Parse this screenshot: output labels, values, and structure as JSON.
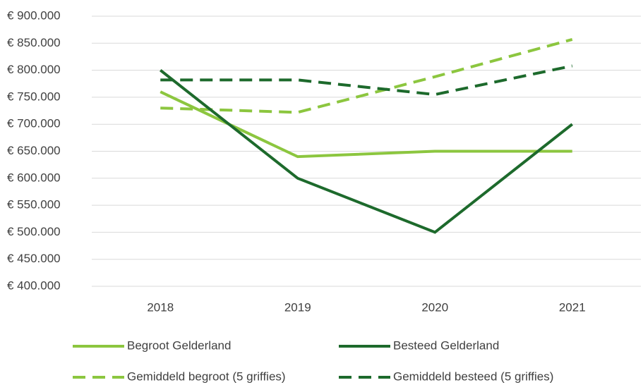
{
  "chart_data": {
    "type": "line",
    "categories": [
      "2018",
      "2019",
      "2020",
      "2021"
    ],
    "series": [
      {
        "name": "Begroot Gelderland",
        "color": "#8cc63f",
        "dashed": false,
        "values": [
          760000,
          640000,
          650000,
          650000
        ]
      },
      {
        "name": "Besteed Gelderland",
        "color": "#1d6a2c",
        "dashed": false,
        "values": [
          800000,
          600000,
          500000,
          700000
        ]
      },
      {
        "name": "Gemiddeld begroot (5 griffies)",
        "color": "#8cc63f",
        "dashed": true,
        "values": [
          730000,
          722000,
          788000,
          857000
        ]
      },
      {
        "name": "Gemiddeld besteed (5 griffies)",
        "color": "#1d6a2c",
        "dashed": true,
        "values": [
          782000,
          782000,
          755000,
          808000
        ]
      }
    ],
    "ylim": [
      400000,
      900000
    ],
    "yticks": [
      {
        "value": 400000,
        "label": "€ 400.000"
      },
      {
        "value": 450000,
        "label": "€ 450.000"
      },
      {
        "value": 500000,
        "label": "€ 500.000"
      },
      {
        "value": 550000,
        "label": "€ 550.000"
      },
      {
        "value": 600000,
        "label": "€ 600.000"
      },
      {
        "value": 650000,
        "label": "€ 650.000"
      },
      {
        "value": 700000,
        "label": "€ 700.000"
      },
      {
        "value": 750000,
        "label": "€ 750.000"
      },
      {
        "value": 800000,
        "label": "€ 800.000"
      },
      {
        "value": 850000,
        "label": "€ 850.000"
      },
      {
        "value": 900000,
        "label": "€ 900.000"
      }
    ],
    "grid": true,
    "legend": "bottom"
  }
}
